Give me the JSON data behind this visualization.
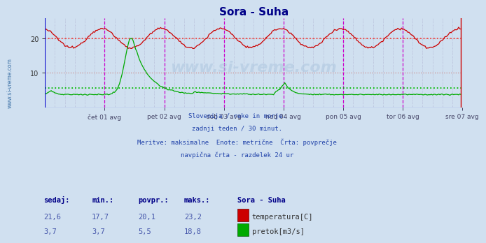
{
  "title": "Sora - Suha",
  "bg_color": "#d0e0f0",
  "plot_bg_color": "#d0e0f0",
  "x_tick_labels": [
    "čet 01 avg",
    "pet 02 avg",
    "sob 03 avg",
    "ned 04 avg",
    "pon 05 avg",
    "tor 06 avg",
    "sre 07 avg"
  ],
  "y_ticks": [
    10,
    20
  ],
  "y_lim": [
    0,
    26
  ],
  "temp_avg": 20.1,
  "flow_avg": 5.5,
  "subtitle_lines": [
    "Slovenija / reke in morje.",
    "zadnji teden / 30 minut.",
    "Meritve: maksimalne  Enote: metrične  Črta: povprečje",
    "navpična črta - razdelek 24 ur"
  ],
  "table_header": [
    "sedaj:",
    "min.:",
    "povpr.:",
    "maks.:",
    "Sora - Suha"
  ],
  "table_row1_vals": [
    "21,6",
    "17,7",
    "20,1",
    "23,2"
  ],
  "table_row2_vals": [
    "3,7",
    "3,7",
    "5,5",
    "18,8"
  ],
  "temp_color": "#cc0000",
  "flow_color": "#00aa00",
  "avg_temp_color": "#ee4444",
  "avg_flow_color": "#00bb00",
  "vline_color": "#cc00cc",
  "grid_h_color": "#cc8888",
  "grid_v_color": "#aaaacc",
  "n_points": 336,
  "watermark": "www.si-vreme.com",
  "sidebar_text": "www.si-vreme.com"
}
